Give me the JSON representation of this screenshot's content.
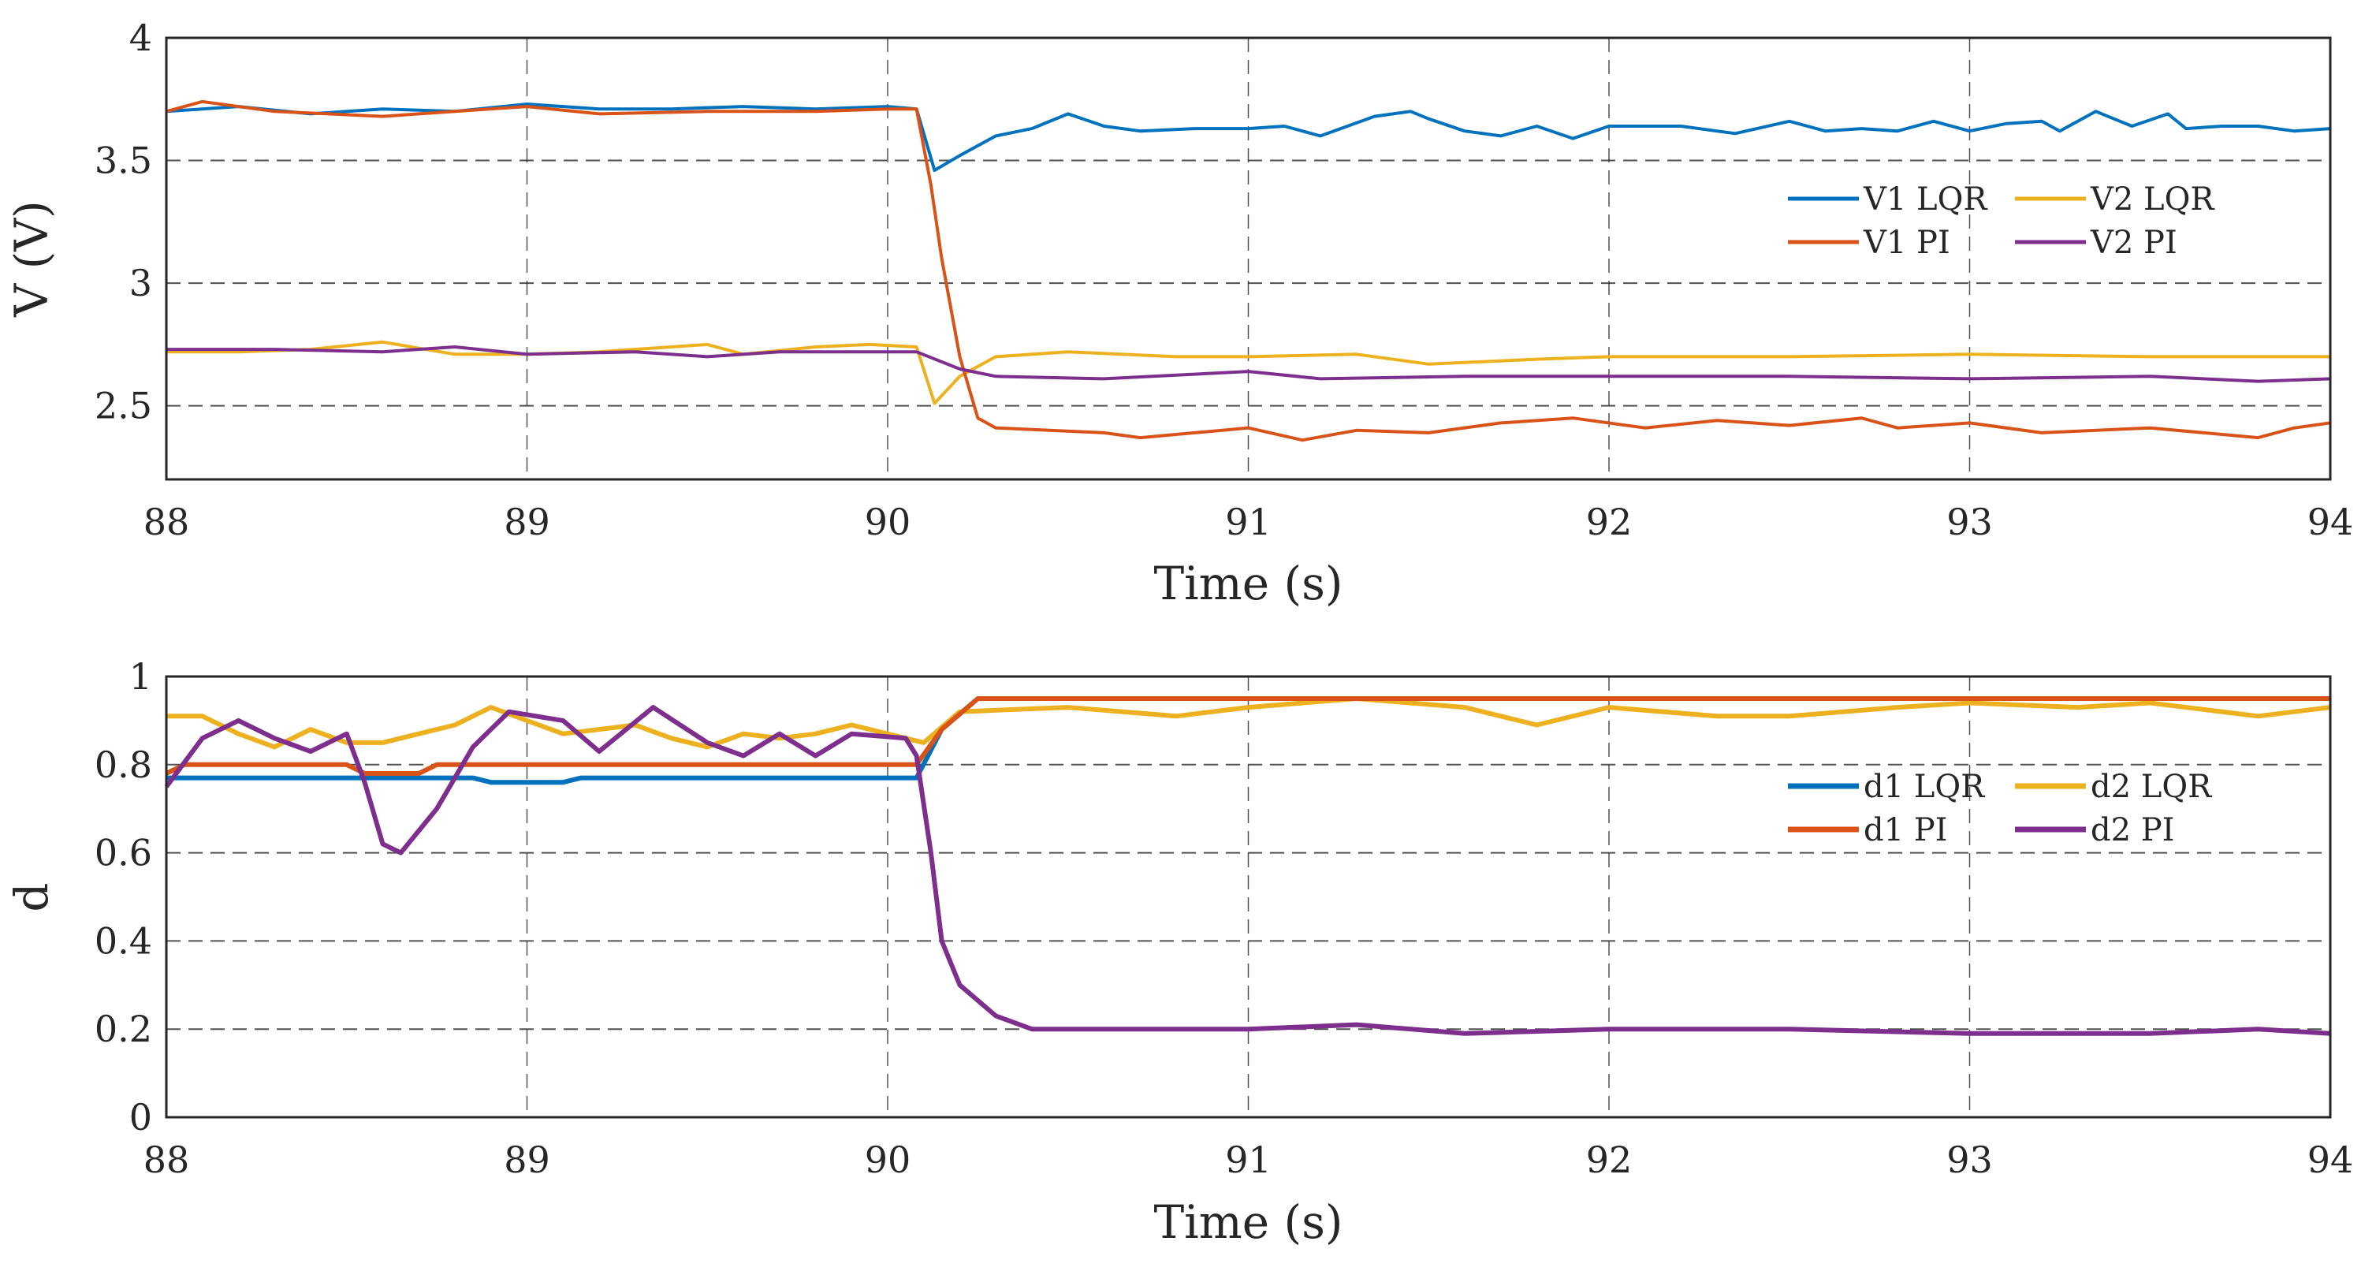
{
  "chart_data": [
    {
      "type": "line",
      "xlabel": "Time (s)",
      "ylabel": "V (V)",
      "xlim": [
        88,
        94
      ],
      "ylim": [
        2.2,
        4
      ],
      "xticks": [
        "88",
        "89",
        "90",
        "91",
        "92",
        "93",
        "94"
      ],
      "yticks": [
        "2.5",
        "3",
        "3.5",
        "4"
      ],
      "grid": true,
      "legend": "right",
      "series": [
        {
          "name": "V1 LQR",
          "color": "#0072BD",
          "x": [
            88,
            88.2,
            88.4,
            88.6,
            88.8,
            89,
            89.2,
            89.4,
            89.6,
            89.8,
            90,
            90.08,
            90.13,
            90.2,
            90.3,
            90.4,
            90.5,
            90.6,
            90.7,
            90.85,
            91,
            91.1,
            91.2,
            91.35,
            91.45,
            91.5,
            91.6,
            91.7,
            91.8,
            91.9,
            92,
            92.1,
            92.2,
            92.35,
            92.5,
            92.6,
            92.7,
            92.8,
            92.9,
            93,
            93.1,
            93.2,
            93.25,
            93.35,
            93.45,
            93.55,
            93.6,
            93.7,
            93.8,
            93.9,
            94
          ],
          "y": [
            3.7,
            3.72,
            3.69,
            3.71,
            3.7,
            3.73,
            3.71,
            3.71,
            3.72,
            3.71,
            3.72,
            3.71,
            3.46,
            3.52,
            3.6,
            3.63,
            3.69,
            3.64,
            3.62,
            3.63,
            3.63,
            3.64,
            3.6,
            3.68,
            3.7,
            3.67,
            3.62,
            3.6,
            3.64,
            3.59,
            3.64,
            3.64,
            3.64,
            3.61,
            3.66,
            3.62,
            3.63,
            3.62,
            3.66,
            3.62,
            3.65,
            3.66,
            3.62,
            3.7,
            3.64,
            3.69,
            3.63,
            3.64,
            3.64,
            3.62,
            3.63
          ]
        },
        {
          "name": "V2 LQR",
          "color": "#EDB120",
          "x": [
            88,
            88.2,
            88.4,
            88.6,
            88.8,
            89,
            89.2,
            89.4,
            89.5,
            89.6,
            89.8,
            89.95,
            90.08,
            90.13,
            90.2,
            90.3,
            90.5,
            90.8,
            91,
            91.3,
            91.5,
            91.8,
            92,
            92.5,
            93,
            93.5,
            94
          ],
          "y": [
            2.72,
            2.72,
            2.73,
            2.76,
            2.71,
            2.71,
            2.72,
            2.74,
            2.75,
            2.71,
            2.74,
            2.75,
            2.74,
            2.51,
            2.62,
            2.7,
            2.72,
            2.7,
            2.7,
            2.71,
            2.67,
            2.69,
            2.7,
            2.7,
            2.71,
            2.7,
            2.7
          ]
        },
        {
          "name": "V1 PI",
          "color": "#D95319",
          "x": [
            88,
            88.1,
            88.3,
            88.6,
            88.8,
            89,
            89.2,
            89.5,
            89.8,
            90,
            90.08,
            90.12,
            90.15,
            90.2,
            90.25,
            90.3,
            90.6,
            90.7,
            91,
            91.15,
            91.3,
            91.5,
            91.7,
            91.9,
            92.1,
            92.3,
            92.5,
            92.7,
            92.8,
            93,
            93.2,
            93.5,
            93.8,
            93.9,
            94
          ],
          "y": [
            3.7,
            3.74,
            3.7,
            3.68,
            3.7,
            3.72,
            3.69,
            3.7,
            3.7,
            3.71,
            3.71,
            3.4,
            3.1,
            2.7,
            2.45,
            2.41,
            2.39,
            2.37,
            2.41,
            2.36,
            2.4,
            2.39,
            2.43,
            2.45,
            2.41,
            2.44,
            2.42,
            2.45,
            2.41,
            2.43,
            2.39,
            2.41,
            2.37,
            2.41,
            2.43
          ]
        },
        {
          "name": "V2 PI",
          "color": "#7E2F8E",
          "x": [
            88,
            88.3,
            88.6,
            88.8,
            89,
            89.3,
            89.5,
            89.7,
            90,
            90.08,
            90.2,
            90.3,
            90.6,
            91,
            91.2,
            91.6,
            92,
            92.5,
            93,
            93.5,
            93.8,
            94
          ],
          "y": [
            2.73,
            2.73,
            2.72,
            2.74,
            2.71,
            2.72,
            2.7,
            2.72,
            2.72,
            2.72,
            2.65,
            2.62,
            2.61,
            2.64,
            2.61,
            2.62,
            2.62,
            2.62,
            2.61,
            2.62,
            2.6,
            2.61
          ]
        }
      ]
    },
    {
      "type": "line",
      "xlabel": "Time (s)",
      "ylabel": "d",
      "xlim": [
        88,
        94
      ],
      "ylim": [
        0,
        1
      ],
      "xticks": [
        "88",
        "89",
        "90",
        "91",
        "92",
        "93",
        "94"
      ],
      "yticks": [
        "0",
        "0.2",
        "0.4",
        "0.6",
        "0.8",
        "1"
      ],
      "grid": true,
      "legend": "right",
      "series": [
        {
          "name": "d1 LQR",
          "color": "#0072BD",
          "x": [
            88,
            88.85,
            88.9,
            89.1,
            89.15,
            90.08,
            90.15,
            90.25,
            94
          ],
          "y": [
            0.77,
            0.77,
            0.76,
            0.76,
            0.77,
            0.77,
            0.88,
            0.95,
            0.95
          ]
        },
        {
          "name": "d2 LQR",
          "color": "#EDB120",
          "x": [
            88,
            88.1,
            88.2,
            88.3,
            88.4,
            88.5,
            88.6,
            88.8,
            88.9,
            89.0,
            89.1,
            89.3,
            89.4,
            89.5,
            89.6,
            89.7,
            89.8,
            89.9,
            90.05,
            90.1,
            90.2,
            90.5,
            90.8,
            91,
            91.3,
            91.6,
            91.8,
            92,
            92.3,
            92.5,
            92.8,
            93,
            93.3,
            93.5,
            93.8,
            94
          ],
          "y": [
            0.91,
            0.91,
            0.87,
            0.84,
            0.88,
            0.85,
            0.85,
            0.89,
            0.93,
            0.9,
            0.87,
            0.89,
            0.86,
            0.84,
            0.87,
            0.86,
            0.87,
            0.89,
            0.86,
            0.85,
            0.92,
            0.93,
            0.91,
            0.93,
            0.95,
            0.93,
            0.89,
            0.93,
            0.91,
            0.91,
            0.93,
            0.94,
            0.93,
            0.94,
            0.91,
            0.93
          ]
        },
        {
          "name": "d1 PI",
          "color": "#D95319",
          "x": [
            88,
            88.05,
            88.5,
            88.55,
            88.7,
            88.75,
            90.08,
            90.15,
            90.25,
            94
          ],
          "y": [
            0.78,
            0.8,
            0.8,
            0.78,
            0.78,
            0.8,
            0.8,
            0.88,
            0.95,
            0.95
          ]
        },
        {
          "name": "d2 PI",
          "color": "#7E2F8E",
          "x": [
            88,
            88.1,
            88.2,
            88.3,
            88.4,
            88.5,
            88.55,
            88.6,
            88.65,
            88.75,
            88.85,
            88.95,
            89.1,
            89.2,
            89.35,
            89.5,
            89.6,
            89.7,
            89.8,
            89.9,
            90.05,
            90.08,
            90.12,
            90.15,
            90.2,
            90.3,
            90.4,
            91,
            91.3,
            91.6,
            92,
            92.5,
            93,
            93.5,
            93.8,
            94
          ],
          "y": [
            0.75,
            0.86,
            0.9,
            0.86,
            0.83,
            0.87,
            0.76,
            0.62,
            0.6,
            0.7,
            0.84,
            0.92,
            0.9,
            0.83,
            0.93,
            0.85,
            0.82,
            0.87,
            0.82,
            0.87,
            0.86,
            0.82,
            0.6,
            0.4,
            0.3,
            0.23,
            0.2,
            0.2,
            0.21,
            0.19,
            0.2,
            0.2,
            0.19,
            0.19,
            0.2,
            0.19
          ]
        }
      ]
    }
  ]
}
